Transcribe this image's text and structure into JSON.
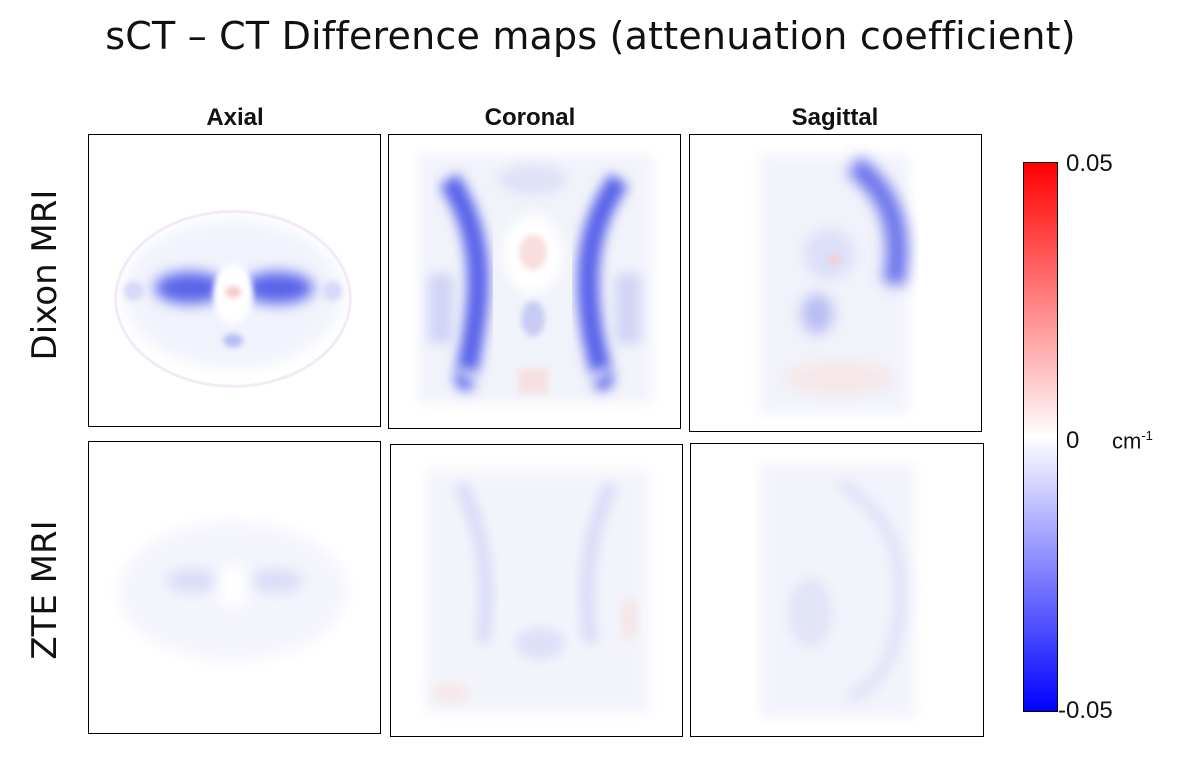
{
  "title": "sCT – CT Difference maps (attenuation coefficient)",
  "columns": [
    "Axial",
    "Coronal",
    "Sagittal"
  ],
  "rows": [
    "Dixon MRI",
    "ZTE MRI"
  ],
  "colorbar": {
    "max_label": "0.05",
    "mid_label": "0",
    "min_label": "-0.05",
    "unit_base": "cm",
    "unit_exp": "-1",
    "colors": {
      "high": "#ff0000",
      "mid": "#ffffff",
      "low": "#0000ff"
    }
  }
}
